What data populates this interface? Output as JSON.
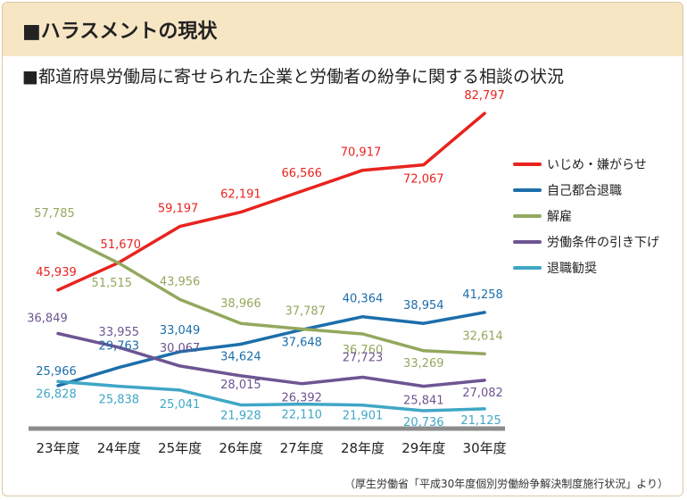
{
  "header": {
    "title": "■ハラスメントの現状",
    "subtitle": "■都道府県労働局に寄せられた企業と労働者の紛争に関する相談の状況"
  },
  "source_note": "（厚生労働省「平成30年度個別労働紛争解決制度施行状況」より）",
  "chart_data": {
    "type": "line",
    "categories": [
      "23年度",
      "24年度",
      "25年度",
      "26年度",
      "27年度",
      "28年度",
      "29年度",
      "30年度"
    ],
    "series": [
      {
        "name": "いじめ・嫌がらせ",
        "color": "#e8231f",
        "values": [
          45939,
          51670,
          59197,
          62191,
          66566,
          70917,
          72067,
          82797
        ],
        "labels": [
          "45,939",
          "51,670",
          "59,197",
          "62,191",
          "66,566",
          "70,917",
          "72,067",
          "82,797"
        ]
      },
      {
        "name": "自己都合退職",
        "color": "#1c6eaa",
        "values": [
          25966,
          29763,
          33049,
          34624,
          37648,
          40364,
          38954,
          41258
        ],
        "labels": [
          "25,966",
          "29,763",
          "33,049",
          "34,624",
          "37,648",
          "40,364",
          "38,954",
          "41,258"
        ]
      },
      {
        "name": "解雇",
        "color": "#93a85e",
        "values": [
          57785,
          51515,
          43956,
          38966,
          37787,
          36760,
          33269,
          32614
        ],
        "labels": [
          "57,785",
          "51,515",
          "43,956",
          "38,966",
          "37,787",
          "36,760",
          "33,269",
          "32,614"
        ]
      },
      {
        "name": "労働条件の引き下げ",
        "color": "#6d5592",
        "values": [
          36849,
          33955,
          30067,
          28015,
          26392,
          27723,
          25841,
          27082
        ],
        "labels": [
          "36,849",
          "33,955",
          "30,067",
          "28,015",
          "26,392",
          "27,723",
          "25,841",
          "27,082"
        ]
      },
      {
        "name": "退職勧奨",
        "color": "#3fa7c6",
        "values": [
          26828,
          25838,
          25041,
          21928,
          22110,
          21901,
          20736,
          21125
        ],
        "labels": [
          "26,828",
          "25,838",
          "25,041",
          "21,928",
          "22,110",
          "21,901",
          "20,736",
          "21,125"
        ]
      }
    ],
    "legend_position": "right",
    "grid": false
  }
}
